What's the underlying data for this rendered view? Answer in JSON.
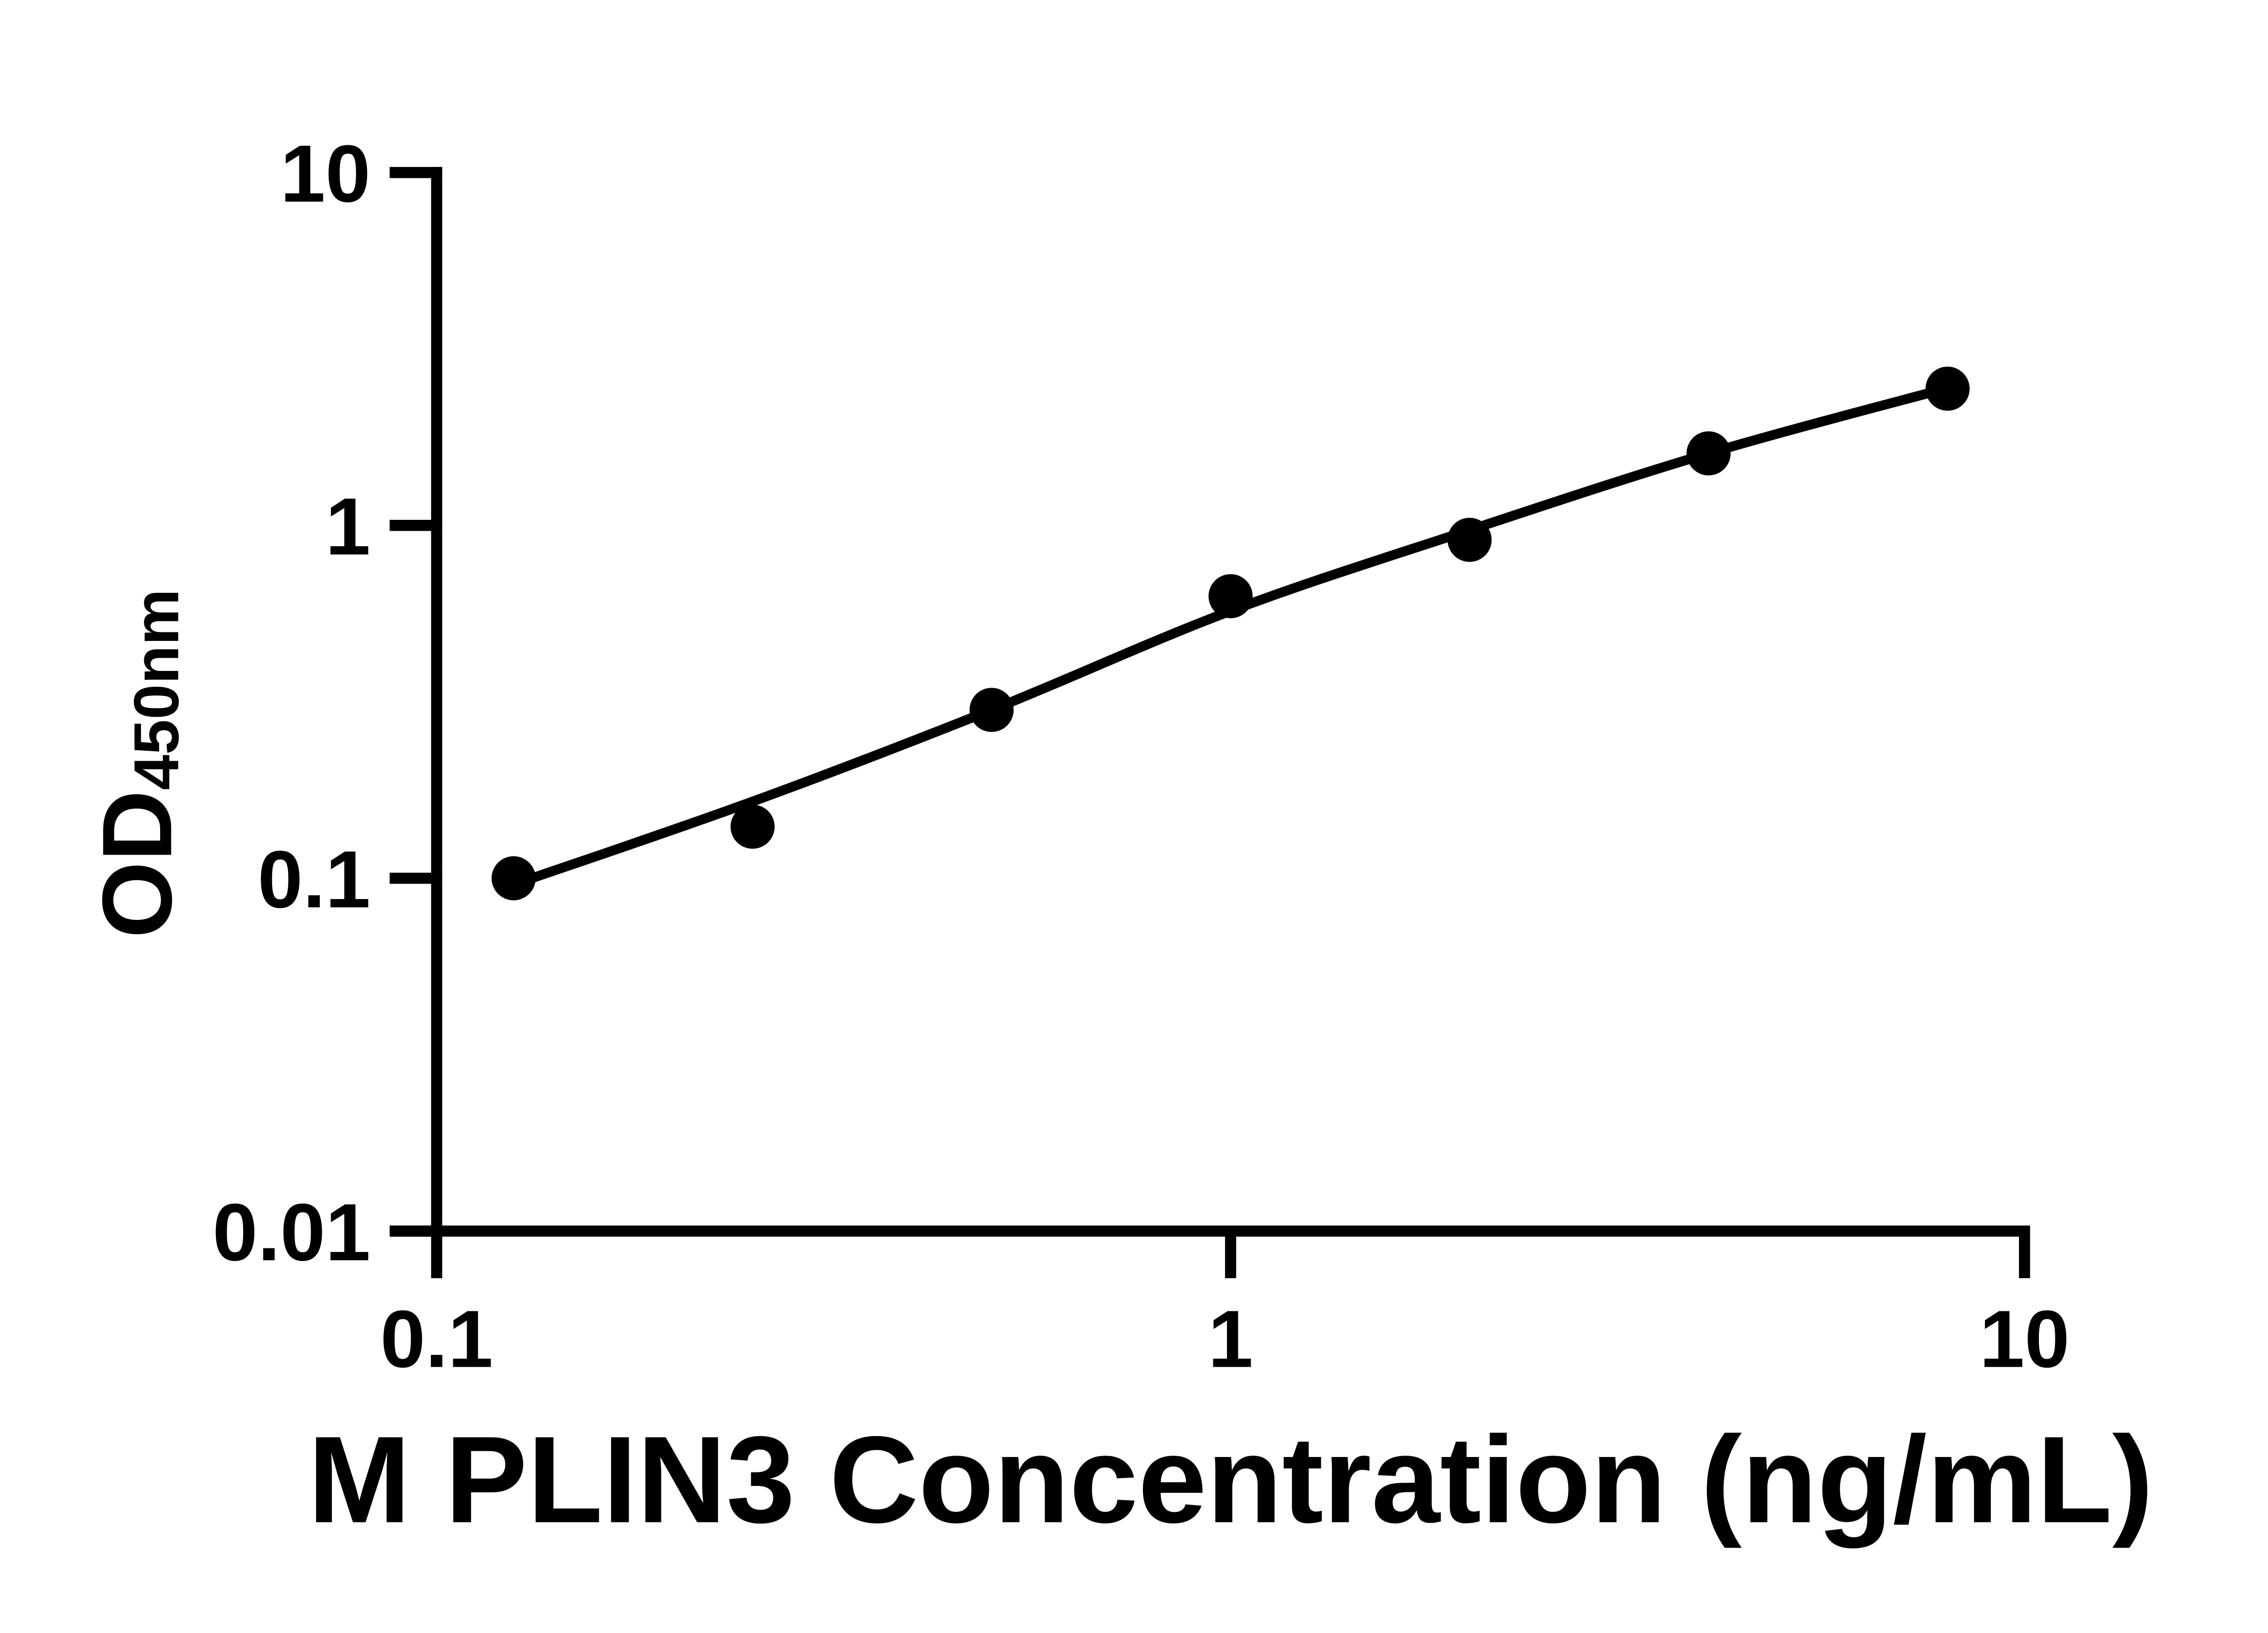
{
  "figure": {
    "background_color": "#ffffff",
    "foreground_color": "#000000"
  },
  "chart_data": {
    "type": "scatter",
    "title": "",
    "xlabel": "M PLIN3 Concentration (ng/mL)",
    "ylabel": {
      "main": "OD",
      "sub": "450nm"
    },
    "x_scale": "log",
    "y_scale": "log",
    "xlim": [
      0.1,
      10
    ],
    "ylim": [
      0.01,
      10
    ],
    "x_tick_values": [
      0.1,
      1,
      10
    ],
    "x_tick_labels": [
      "0.1",
      "1",
      "10"
    ],
    "y_tick_values": [
      10,
      1,
      0.1,
      0.01
    ],
    "y_tick_labels": [
      "10",
      "1",
      "0.1",
      "0.01"
    ],
    "grid": false,
    "legend": false,
    "series": [
      {
        "name": "M PLIN3 standard curve",
        "marker": "filled-circle",
        "color": "#000000",
        "x": [
          0.125,
          0.25,
          0.5,
          1,
          2,
          4,
          8
        ],
        "y": [
          0.1,
          0.14,
          0.3,
          0.63,
          0.91,
          1.6,
          2.44
        ]
      }
    ],
    "fit_curve": {
      "name": "fitted standard curve line",
      "color": "#000000",
      "x": [
        0.125,
        0.25,
        0.5,
        1,
        2,
        4,
        8
      ],
      "y": [
        0.096,
        0.165,
        0.3,
        0.572,
        0.97,
        1.6,
        2.45
      ]
    }
  }
}
